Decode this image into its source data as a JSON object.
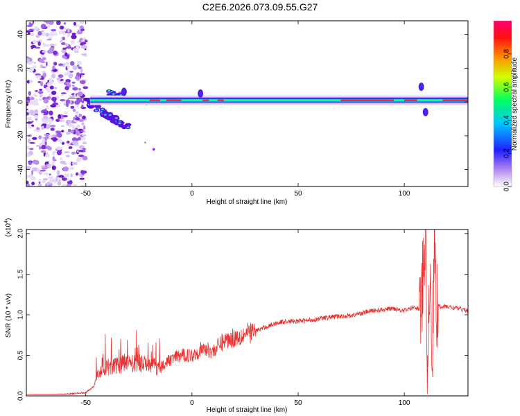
{
  "title": "C2E6.2026.073.09.55.G27",
  "chart_data": [
    {
      "type": "heatmap",
      "name": "spectrogram",
      "xlabel": "Height of straight line (km)",
      "ylabel": "Frequency (Hz)",
      "xlim": [
        -78,
        130
      ],
      "ylim": [
        -50,
        48
      ],
      "xticks": [
        -50,
        0,
        50,
        100
      ],
      "yticks": [
        -40,
        -20,
        0,
        20,
        40
      ],
      "colorbar": {
        "label": "Normalized spectral amplitude",
        "range": [
          0,
          1
        ],
        "ticks": [
          "0.0",
          "0.2",
          "0.4",
          "0.6",
          "0.8"
        ],
        "colors": [
          "#ffffff",
          "#7b00e0",
          "#2020ff",
          "#00c8ff",
          "#00ff40",
          "#ffff00",
          "#ff8000",
          "#ff0000",
          "#ff0060"
        ]
      },
      "features": [
        {
          "desc": "scattered low-amplitude noise",
          "x_range": [
            -78,
            -50
          ],
          "freq_range": [
            -50,
            48
          ]
        },
        {
          "desc": "branch descending",
          "x": [
            -50,
            -30
          ],
          "freq": [
            0,
            -15
          ]
        },
        {
          "desc": "main carrier line near 0 Hz",
          "x_range": [
            -48,
            130
          ],
          "freq": 1
        }
      ]
    },
    {
      "type": "line",
      "name": "snr",
      "xlabel": "Height of straight line (km)",
      "ylabel": "SNR (10 * v/v)",
      "scale_label": "(x10",
      "scale_exp": "4",
      "scale_close": ")",
      "xlim": [
        -78,
        130
      ],
      "ylim": [
        0,
        2.05
      ],
      "xticks": [
        -50,
        0,
        50,
        100
      ],
      "yticks": [
        "0.0",
        "0.5",
        "1.0",
        "1.5",
        "2.0"
      ],
      "color": "#e83030",
      "x": [
        -78,
        -70,
        -60,
        -50,
        -46,
        -44,
        -40,
        -35,
        -30,
        -25,
        -20,
        -15,
        -10,
        -5,
        0,
        5,
        10,
        15,
        20,
        25,
        30,
        35,
        40,
        45,
        50,
        55,
        60,
        65,
        70,
        75,
        80,
        85,
        90,
        95,
        100,
        105,
        108,
        109,
        110,
        111,
        112,
        113,
        114,
        115,
        120,
        125,
        130
      ],
      "y": [
        0.0,
        0.01,
        0.02,
        0.04,
        0.12,
        0.3,
        0.35,
        0.38,
        0.4,
        0.42,
        0.38,
        0.35,
        0.45,
        0.5,
        0.5,
        0.58,
        0.55,
        0.68,
        0.72,
        0.76,
        0.8,
        0.85,
        0.9,
        0.92,
        0.92,
        0.93,
        0.95,
        0.97,
        0.98,
        0.99,
        1.02,
        1.05,
        1.06,
        1.08,
        1.05,
        1.1,
        1.05,
        1.5,
        2.05,
        0.15,
        1.7,
        0.1,
        2.0,
        1.1,
        1.1,
        1.08,
        1.05
      ]
    }
  ]
}
